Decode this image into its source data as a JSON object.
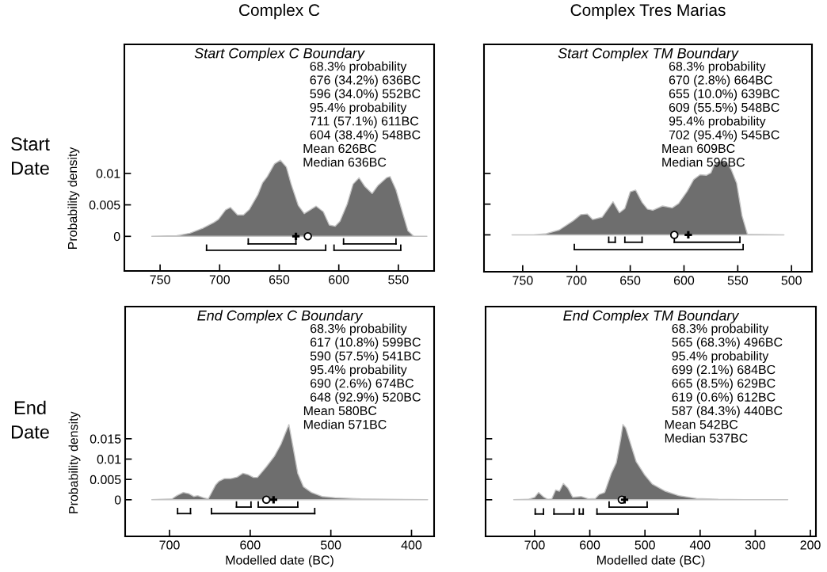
{
  "chart_data": [
    {
      "type": "area",
      "title": "Complex C",
      "subtitle": "Start Complex C Boundary",
      "ylabel": "Probability density",
      "xlim": [
        780,
        520
      ],
      "xticks": [
        750,
        700,
        650,
        600,
        550
      ],
      "ylim": [
        -0.0055,
        0.0305
      ],
      "yticks": [
        0,
        0.005,
        0.01
      ],
      "annotations": [
        "Start Date",
        "68.3% probability",
        "676 (34.2%) 636BC",
        "596 (34.0%) 552BC",
        "95.4% probability",
        "711 (57.1%) 611BC",
        "604 (38.4%) 548BC",
        "Mean 626BC",
        "Median 636BC"
      ],
      "series": [
        {
          "color": "#6e6e6e",
          "x": [
            757,
            736,
            725,
            714,
            705,
            701,
            695,
            691,
            685,
            680,
            675,
            668,
            664,
            660,
            654,
            649,
            644,
            640,
            634,
            629,
            619,
            613,
            608,
            603,
            599,
            593,
            588,
            583,
            578,
            572,
            567,
            560,
            557,
            552,
            547,
            542,
            537,
            526
          ],
          "values": [
            0,
            0.0001,
            0.0005,
            0.0013,
            0.0022,
            0.0027,
            0.0042,
            0.0046,
            0.0034,
            0.0034,
            0.0043,
            0.0066,
            0.0085,
            0.0095,
            0.0115,
            0.0121,
            0.011,
            0.0083,
            0.0049,
            0.0036,
            0.0048,
            0.0039,
            0.0018,
            0.0016,
            0.0024,
            0.0051,
            0.0083,
            0.0093,
            0.0079,
            0.0068,
            0.0081,
            0.0093,
            0.0095,
            0.0074,
            0.0041,
            0.0009,
            0,
            0
          ]
        },
        {
          "type": "line",
          "color": "#000000",
          "x": [
            676,
            636
          ],
          "values": [
            -0.0012,
            -0.0012
          ]
        },
        {
          "type": "line",
          "color": "#000000",
          "x": [
            596,
            552
          ],
          "values": [
            -0.0012,
            -0.0012
          ]
        },
        {
          "type": "line",
          "color": "#000000",
          "x": [
            711,
            611
          ],
          "values": [
            -0.0022,
            -0.0022
          ]
        },
        {
          "type": "line",
          "color": "#000000",
          "x": [
            604,
            548
          ],
          "values": [
            -0.0022,
            -0.0022
          ]
        },
        {
          "type": "scatter",
          "marker": "circle",
          "color": "#000000",
          "x": [
            626
          ],
          "values": [
            0
          ]
        },
        {
          "type": "scatter",
          "marker": "cross",
          "color": "#000000",
          "x": [
            636
          ],
          "values": [
            0
          ]
        }
      ]
    },
    {
      "type": "area",
      "title": "Complex Tres Marias",
      "subtitle": "Start Complex TM Boundary",
      "tick_labels": "x",
      "xlim": [
        786,
        481
      ],
      "xticks": [
        750,
        700,
        650,
        600,
        550,
        500
      ],
      "ylim": [
        -0.006,
        0.031
      ],
      "yticks": [
        0,
        0.005,
        0.01
      ],
      "annotations": [
        "68.3% probability",
        "670 (2.8%) 664BC",
        "655 (10.0%) 639BC",
        "609 (55.5%) 548BC",
        "95.4% probability",
        "702 (95.4%) 545BC",
        "Mean 609BC",
        "Median 596BC"
      ],
      "series": [
        {
          "color": "#6e6e6e",
          "x": [
            760,
            740,
            728,
            716,
            703,
            696,
            690,
            685,
            676,
            666,
            660,
            655,
            650,
            645,
            639,
            634,
            629,
            620,
            611,
            605,
            597,
            591,
            585,
            579,
            575,
            572,
            566,
            560,
            556,
            551,
            546,
            541,
            507
          ],
          "values": [
            0,
            0,
            0.0002,
            0.0008,
            0.0023,
            0.0033,
            0.0034,
            0.0025,
            0.0029,
            0.0054,
            0.0036,
            0.0043,
            0.007,
            0.0073,
            0.0053,
            0.0042,
            0.004,
            0.0047,
            0.0044,
            0.0051,
            0.0071,
            0.009,
            0.0098,
            0.0097,
            0.0101,
            0.0114,
            0.012,
            0.0117,
            0.0106,
            0.0084,
            0.0031,
            0.0001,
            0
          ]
        },
        {
          "type": "line",
          "color": "#000000",
          "x": [
            670,
            664
          ],
          "values": [
            -0.0012,
            -0.0012
          ]
        },
        {
          "type": "line",
          "color": "#000000",
          "x": [
            655,
            639
          ],
          "values": [
            -0.0012,
            -0.0012
          ]
        },
        {
          "type": "line",
          "color": "#000000",
          "x": [
            609,
            548
          ],
          "values": [
            -0.0012,
            -0.0012
          ]
        },
        {
          "type": "line",
          "color": "#000000",
          "x": [
            702,
            545
          ],
          "values": [
            -0.0024,
            -0.0024
          ]
        },
        {
          "type": "scatter",
          "marker": "circle",
          "color": "#000000",
          "x": [
            609
          ],
          "values": [
            0
          ]
        },
        {
          "type": "scatter",
          "marker": "cross",
          "color": "#000000",
          "x": [
            596
          ],
          "values": [
            0
          ]
        }
      ]
    },
    {
      "type": "area",
      "subtitle": "End Complex C Boundary",
      "xlabel": "Modelled date (BC)",
      "ylabel": "Probability density",
      "xlim": [
        755,
        372
      ],
      "xticks": [
        700,
        600,
        500,
        400
      ],
      "ylim": [
        -0.009,
        0.0475
      ],
      "yticks": [
        0,
        0.005,
        0.01,
        0.015
      ],
      "annotations": [
        "End Date",
        "68.3% probability",
        "617 (10.8%) 599BC",
        "590 (57.5%) 541BC",
        "95.4% probability",
        "690 (2.6%) 674BC",
        "648 (92.9%) 520BC",
        "Mean 580BC",
        "Median 571BC"
      ],
      "series": [
        {
          "color": "#6e6e6e",
          "x": [
            722,
            697,
            691,
            683,
            676,
            670,
            665,
            658,
            652,
            643,
            639,
            632,
            624,
            616,
            609,
            603,
            596,
            591,
            580,
            570,
            562,
            552,
            546,
            541,
            534,
            524,
            511,
            495,
            462,
            429,
            380
          ],
          "values": [
            0,
            0.0002,
            0.001,
            0.0018,
            0.0015,
            0.0008,
            0.001,
            0.0005,
            0.0002,
            0.0036,
            0.0045,
            0.0052,
            0.0052,
            0.0056,
            0.0065,
            0.0062,
            0.0055,
            0.0055,
            0.0081,
            0.0107,
            0.0136,
            0.0185,
            0.012,
            0.0065,
            0.0032,
            0.0018,
            0.0008,
            0.0005,
            0.0002,
            0.0001,
            0
          ]
        },
        {
          "type": "line",
          "color": "#000000",
          "x": [
            617,
            599
          ],
          "values": [
            -0.0018,
            -0.0018
          ]
        },
        {
          "type": "line",
          "color": "#000000",
          "x": [
            590,
            541
          ],
          "values": [
            -0.0018,
            -0.0018
          ]
        },
        {
          "type": "line",
          "color": "#000000",
          "x": [
            690,
            674
          ],
          "values": [
            -0.0034,
            -0.0034
          ]
        },
        {
          "type": "line",
          "color": "#000000",
          "x": [
            648,
            520
          ],
          "values": [
            -0.0034,
            -0.0034
          ]
        },
        {
          "type": "scatter",
          "marker": "circle",
          "color": "#000000",
          "x": [
            580
          ],
          "values": [
            0
          ]
        },
        {
          "type": "scatter",
          "marker": "cross",
          "color": "#000000",
          "x": [
            571
          ],
          "values": [
            0
          ]
        }
      ]
    },
    {
      "type": "area",
      "subtitle": "End Complex TM Boundary",
      "xlabel": "Modelled date (BC)",
      "tick_labels": "x",
      "xlim": [
        789,
        190
      ],
      "xticks": [
        700,
        600,
        500,
        400,
        300,
        200
      ],
      "ylim": [
        -0.009,
        0.0475
      ],
      "yticks": [
        0,
        0.005,
        0.01,
        0.015
      ],
      "annotations": [
        "68.3% probability",
        "565 (68.3%) 496BC",
        "95.4% probability",
        "699 (2.1%) 684BC",
        "665 (8.5%) 629BC",
        "619 (0.6%) 612BC",
        "587 (84.3%) 440BC",
        "Mean 542BC",
        "Median 537BC"
      ],
      "series": [
        {
          "color": "#6e6e6e",
          "x": [
            738,
            712,
            700,
            693,
            683,
            676,
            669,
            662,
            655,
            648,
            640,
            631,
            616,
            602,
            590,
            583,
            573,
            561,
            552,
            544,
            540,
            535,
            525,
            516,
            501,
            487,
            463,
            439,
            406,
            367,
            320,
            241
          ],
          "values": [
            0,
            0.0001,
            0.0006,
            0.0018,
            0.0006,
            0.0001,
            0.0002,
            0.0024,
            0.0021,
            0.004,
            0.0029,
            0.0006,
            0.0008,
            0.0002,
            0.0003,
            0.0013,
            0.0018,
            0.0065,
            0.0091,
            0.0149,
            0.0185,
            0.0177,
            0.0133,
            0.0094,
            0.0062,
            0.0039,
            0.0021,
            0.001,
            0.0003,
            0.0001,
            0,
            0
          ]
        },
        {
          "type": "line",
          "color": "#000000",
          "x": [
            565,
            496
          ],
          "values": [
            -0.0018,
            -0.0018
          ]
        },
        {
          "type": "line",
          "color": "#000000",
          "x": [
            699,
            684
          ],
          "values": [
            -0.0035,
            -0.0035
          ]
        },
        {
          "type": "line",
          "color": "#000000",
          "x": [
            665,
            629
          ],
          "values": [
            -0.0035,
            -0.0035
          ]
        },
        {
          "type": "line",
          "color": "#000000",
          "x": [
            619,
            612
          ],
          "values": [
            -0.0035,
            -0.0035
          ]
        },
        {
          "type": "line",
          "color": "#000000",
          "x": [
            587,
            440
          ],
          "values": [
            -0.0035,
            -0.0035
          ]
        },
        {
          "type": "scatter",
          "marker": "circle",
          "color": "#000000",
          "x": [
            542
          ],
          "values": [
            0
          ]
        },
        {
          "type": "scatter",
          "marker": "cross",
          "color": "#000000",
          "x": [
            537
          ],
          "values": [
            0
          ]
        }
      ]
    }
  ]
}
